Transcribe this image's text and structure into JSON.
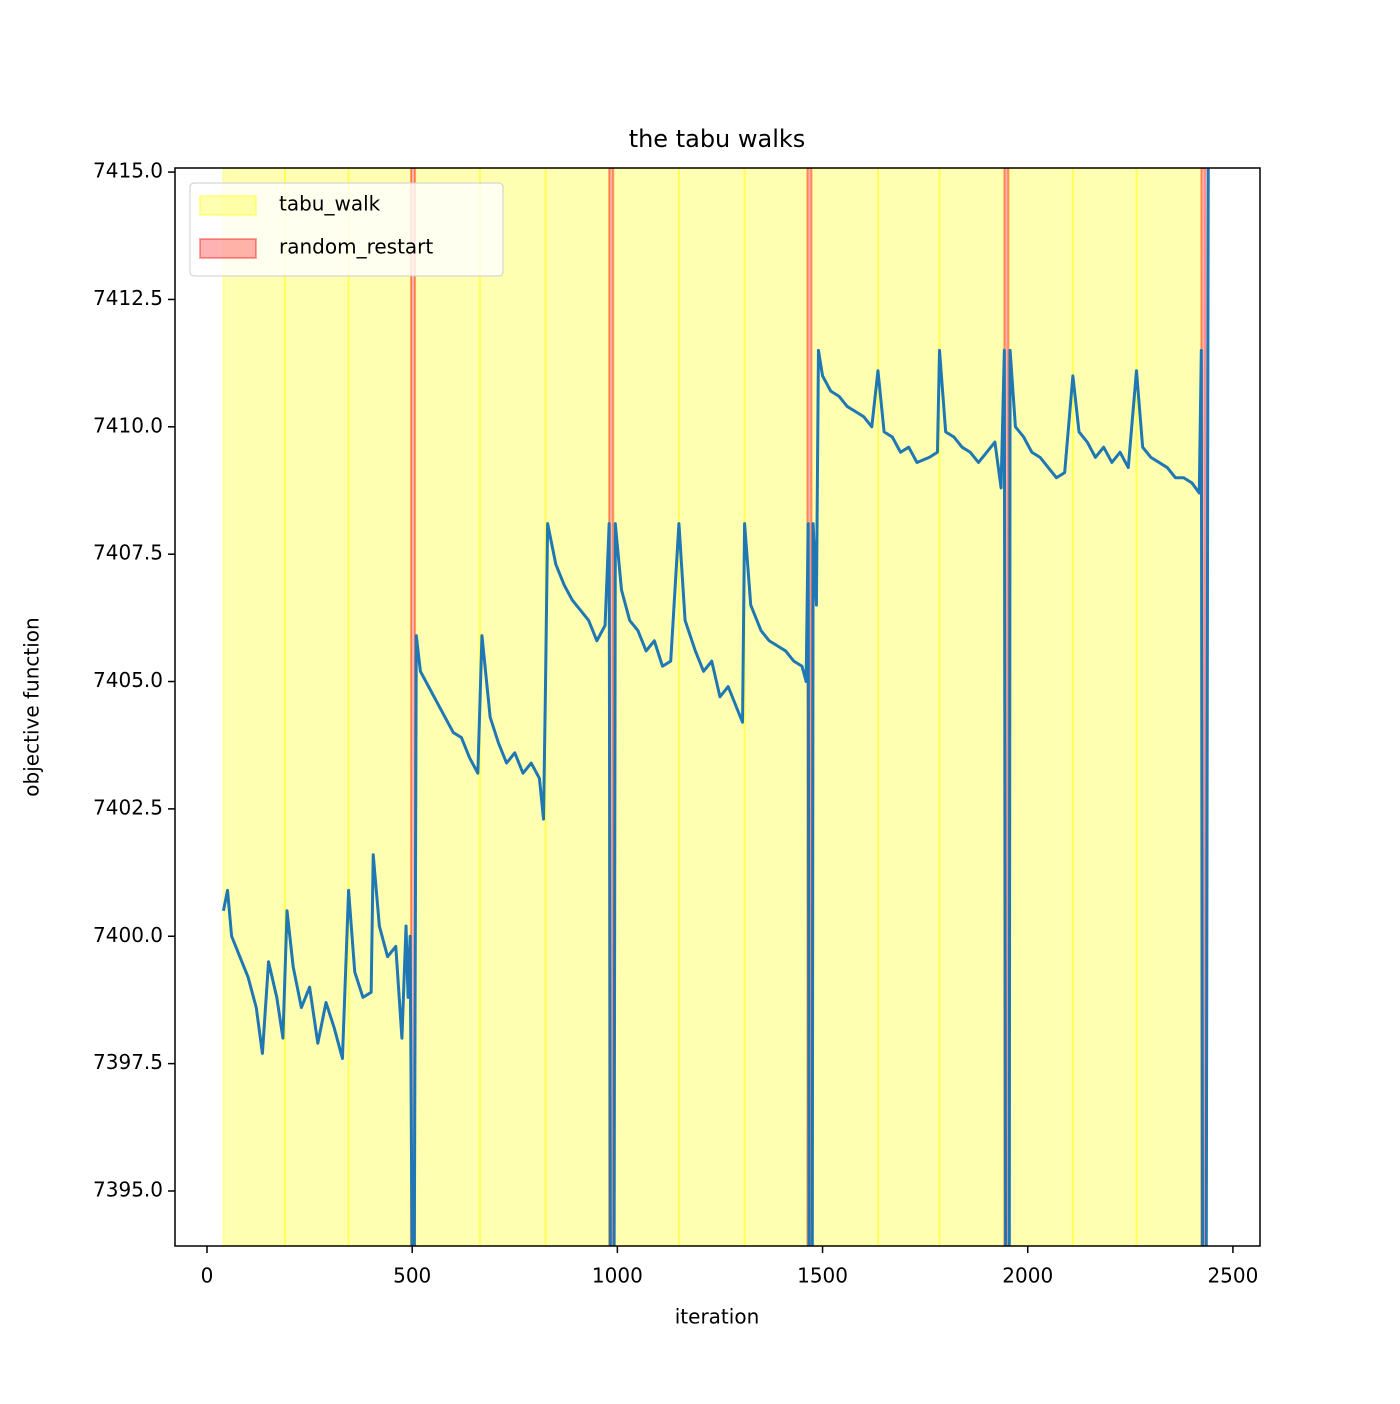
{
  "chart_data": {
    "type": "line",
    "title": "the tabu walks",
    "xlabel": "iteration",
    "ylabel": "objective function",
    "x": [
      40,
      50,
      60,
      80,
      100,
      120,
      135,
      150,
      170,
      185,
      195,
      210,
      230,
      250,
      270,
      290,
      310,
      330,
      345,
      360,
      380,
      400,
      405,
      420,
      440,
      460,
      475,
      485,
      490,
      495,
      500,
      505,
      510,
      520,
      540,
      560,
      580,
      600,
      620,
      640,
      660,
      670,
      690,
      710,
      730,
      750,
      770,
      790,
      810,
      820,
      825,
      830,
      850,
      870,
      890,
      910,
      930,
      950,
      970,
      980,
      983,
      992,
      995,
      1010,
      1030,
      1050,
      1070,
      1090,
      1110,
      1130,
      1150,
      1165,
      1190,
      1210,
      1230,
      1250,
      1270,
      1290,
      1305,
      1310,
      1325,
      1350,
      1370,
      1390,
      1410,
      1430,
      1450,
      1460,
      1465,
      1467,
      1475,
      1477,
      1485,
      1490,
      1500,
      1520,
      1540,
      1560,
      1580,
      1600,
      1620,
      1635,
      1650,
      1670,
      1690,
      1710,
      1730,
      1760,
      1780,
      1785,
      1800,
      1820,
      1840,
      1860,
      1880,
      1900,
      1920,
      1935,
      1943,
      1946,
      1955,
      1957,
      1970,
      1990,
      2010,
      2030,
      2050,
      2070,
      2090,
      2110,
      2125,
      2145,
      2165,
      2185,
      2205,
      2225,
      2245,
      2265,
      2280,
      2300,
      2320,
      2340,
      2360,
      2380,
      2400,
      2418,
      2423,
      2426,
      2435,
      2440
    ],
    "series": [
      {
        "color": "#1f77b4",
        "values": [
          7400.5,
          7400.9,
          7400.0,
          7399.6,
          7399.2,
          7398.6,
          7397.7,
          7399.5,
          7398.8,
          7398.0,
          7400.5,
          7399.4,
          7398.6,
          7399.0,
          7397.9,
          7398.7,
          7398.2,
          7397.6,
          7400.9,
          7399.3,
          7398.8,
          7398.9,
          7401.6,
          7400.2,
          7399.6,
          7399.8,
          7398.0,
          7400.2,
          7398.8,
          7400.0,
          7393.5,
          7393.5,
          7405.9,
          7405.2,
          7404.9,
          7404.6,
          7404.3,
          7404.0,
          7403.9,
          7403.5,
          7403.2,
          7405.9,
          7404.3,
          7403.8,
          7403.4,
          7403.6,
          7403.2,
          7403.4,
          7403.1,
          7402.3,
          7405.0,
          7408.1,
          7407.3,
          7406.9,
          7406.6,
          7406.4,
          7406.2,
          7405.8,
          7406.1,
          7408.1,
          7393.5,
          7393.5,
          7408.1,
          7406.8,
          7406.2,
          7406.0,
          7405.6,
          7405.8,
          7405.3,
          7405.4,
          7408.1,
          7406.2,
          7405.6,
          7405.2,
          7405.4,
          7404.7,
          7404.9,
          7404.5,
          7404.2,
          7408.1,
          7406.5,
          7406.0,
          7405.8,
          7405.7,
          7405.6,
          7405.4,
          7405.3,
          7405.0,
          7408.1,
          7393.5,
          7393.5,
          7408.1,
          7406.5,
          7411.5,
          7411.0,
          7410.7,
          7410.6,
          7410.4,
          7410.3,
          7410.2,
          7410.0,
          7411.1,
          7409.9,
          7409.8,
          7409.5,
          7409.6,
          7409.3,
          7409.4,
          7409.5,
          7411.5,
          7409.9,
          7409.8,
          7409.6,
          7409.5,
          7409.3,
          7409.5,
          7409.7,
          7408.8,
          7411.5,
          7393.5,
          7393.5,
          7411.5,
          7410.0,
          7409.8,
          7409.5,
          7409.4,
          7409.2,
          7409.0,
          7409.1,
          7411.0,
          7409.9,
          7409.7,
          7409.4,
          7409.6,
          7409.3,
          7409.5,
          7409.2,
          7411.1,
          7409.6,
          7409.4,
          7409.3,
          7409.2,
          7409.0,
          7409.0,
          7408.9,
          7408.7,
          7411.5,
          7393.5,
          7393.5,
          7415.5
        ]
      }
    ],
    "spans": [
      {
        "name": "tabu_walk",
        "color": "#ffff00",
        "ranges": [
          [
            40,
            190
          ],
          [
            190,
            345
          ],
          [
            345,
            497
          ],
          [
            507,
            665
          ],
          [
            665,
            825
          ],
          [
            825,
            980
          ],
          [
            990,
            1150
          ],
          [
            1150,
            1310
          ],
          [
            1310,
            1463
          ],
          [
            1473,
            1635
          ],
          [
            1635,
            1785
          ],
          [
            1785,
            1943
          ],
          [
            1953,
            2110
          ],
          [
            2110,
            2265
          ],
          [
            2265,
            2423
          ]
        ]
      },
      {
        "name": "random_restart",
        "color": "#ff0000",
        "ranges": [
          [
            497,
            507
          ],
          [
            980,
            990
          ],
          [
            1463,
            1473
          ],
          [
            1943,
            1953
          ],
          [
            2423,
            2433
          ]
        ]
      }
    ],
    "xlim": [
      -78,
      2566
    ],
    "ylim": [
      7393.92,
      7415.08
    ],
    "xticks": [
      0,
      500,
      1000,
      1500,
      2000,
      2500
    ],
    "yticks": [
      {
        "value": 7395,
        "label": "7395.0"
      },
      7397.5,
      {
        "value": 7400,
        "label": "7400.0"
      },
      7402.5,
      {
        "value": 7405,
        "label": "7405.0"
      },
      7407.5,
      {
        "value": 7410,
        "label": "7410.0"
      },
      7412.5,
      {
        "value": 7415,
        "label": "7415.0"
      }
    ],
    "legend": "upper left"
  }
}
